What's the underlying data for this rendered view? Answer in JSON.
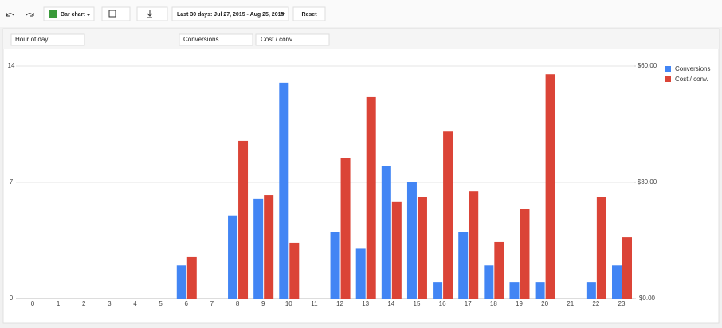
{
  "toolbar": {
    "chart_type": "Bar chart",
    "date_range": "Last 30 days: Jul 27, 2015 - Aug 25, 2015",
    "reset": "Reset"
  },
  "filters": [
    "Hour of day",
    "Conversions",
    "Cost / conv."
  ],
  "chart_data": {
    "type": "bar",
    "categories": [
      "0",
      "1",
      "2",
      "3",
      "4",
      "5",
      "6",
      "7",
      "8",
      "9",
      "10",
      "11",
      "12",
      "13",
      "14",
      "15",
      "16",
      "17",
      "18",
      "19",
      "20",
      "21",
      "22",
      "23"
    ],
    "series": [
      {
        "name": "Conversions",
        "color": "#4285f4",
        "values": [
          0,
          0,
          0,
          0,
          0,
          0,
          2,
          0,
          5,
          6,
          13,
          0,
          4,
          3,
          8,
          7,
          1,
          4,
          2,
          1,
          1,
          0,
          1,
          2
        ]
      },
      {
        "name": "Cost / conv.",
        "color": "#db4437",
        "axis": "y2",
        "values": [
          null,
          null,
          null,
          null,
          null,
          null,
          10.7,
          null,
          40.7,
          26.7,
          14.4,
          null,
          36.2,
          52.0,
          24.9,
          26.3,
          43.1,
          27.7,
          14.6,
          23.2,
          57.9,
          null,
          26.1,
          15.8
        ]
      }
    ],
    "ylim": [
      0,
      14
    ],
    "yticks": [
      0,
      7,
      14
    ],
    "y2lim": [
      0,
      60
    ],
    "y2ticks": [
      {
        "value": 0,
        "label": "$0.00"
      },
      {
        "value": 30,
        "label": "$30.00"
      },
      {
        "value": 60,
        "label": "$60.00"
      }
    ],
    "grid": true,
    "legend": "right"
  }
}
